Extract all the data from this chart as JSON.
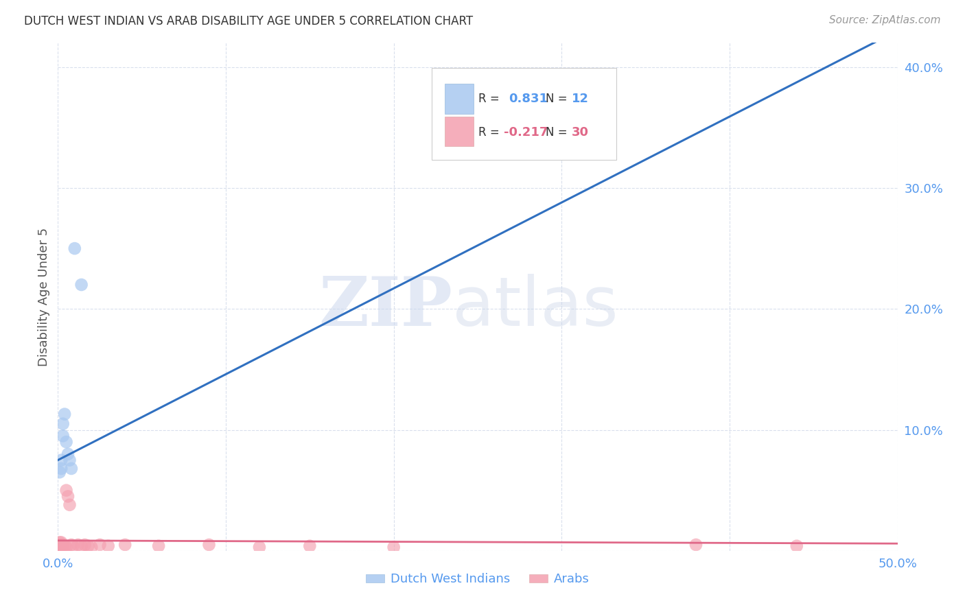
{
  "title": "DUTCH WEST INDIAN VS ARAB DISABILITY AGE UNDER 5 CORRELATION CHART",
  "source": "Source: ZipAtlas.com",
  "ylabel": "Disability Age Under 5",
  "xlim": [
    0.0,
    0.5
  ],
  "ylim": [
    0.0,
    0.42
  ],
  "yticks": [
    0.0,
    0.1,
    0.2,
    0.3,
    0.4
  ],
  "ytick_labels": [
    "",
    "10.0%",
    "20.0%",
    "30.0%",
    "40.0%"
  ],
  "xticks": [
    0.0,
    0.1,
    0.2,
    0.3,
    0.4,
    0.5
  ],
  "xtick_labels": [
    "0.0%",
    "",
    "",
    "",
    "",
    "50.0%"
  ],
  "blue_R": 0.831,
  "blue_N": 12,
  "pink_R": -0.217,
  "pink_N": 30,
  "blue_color": "#a8c8f0",
  "pink_color": "#f4a0b0",
  "blue_line_color": "#3070c0",
  "pink_line_color": "#e06888",
  "watermark_zip": "ZIP",
  "watermark_atlas": "atlas",
  "dutch_west_indians_x": [
    0.001,
    0.002,
    0.002,
    0.003,
    0.003,
    0.004,
    0.005,
    0.006,
    0.007,
    0.008,
    0.01,
    0.014
  ],
  "dutch_west_indians_y": [
    0.065,
    0.068,
    0.075,
    0.095,
    0.105,
    0.113,
    0.09,
    0.08,
    0.075,
    0.068,
    0.25,
    0.22
  ],
  "arabs_x": [
    0.001,
    0.001,
    0.001,
    0.002,
    0.002,
    0.002,
    0.003,
    0.003,
    0.004,
    0.005,
    0.005,
    0.006,
    0.007,
    0.008,
    0.009,
    0.012,
    0.014,
    0.016,
    0.018,
    0.02,
    0.025,
    0.03,
    0.04,
    0.06,
    0.09,
    0.12,
    0.15,
    0.2,
    0.38,
    0.44
  ],
  "arabs_y": [
    0.003,
    0.005,
    0.007,
    0.003,
    0.005,
    0.007,
    0.003,
    0.005,
    0.004,
    0.003,
    0.05,
    0.045,
    0.038,
    0.005,
    0.004,
    0.005,
    0.004,
    0.005,
    0.004,
    0.003,
    0.005,
    0.004,
    0.005,
    0.004,
    0.005,
    0.003,
    0.004,
    0.003,
    0.005,
    0.004
  ],
  "blue_line_x": [
    0.0,
    0.5
  ],
  "blue_line_y": [
    0.075,
    0.43
  ],
  "pink_line_x": [
    0.0,
    0.5
  ],
  "pink_line_y": [
    0.0085,
    0.006
  ]
}
